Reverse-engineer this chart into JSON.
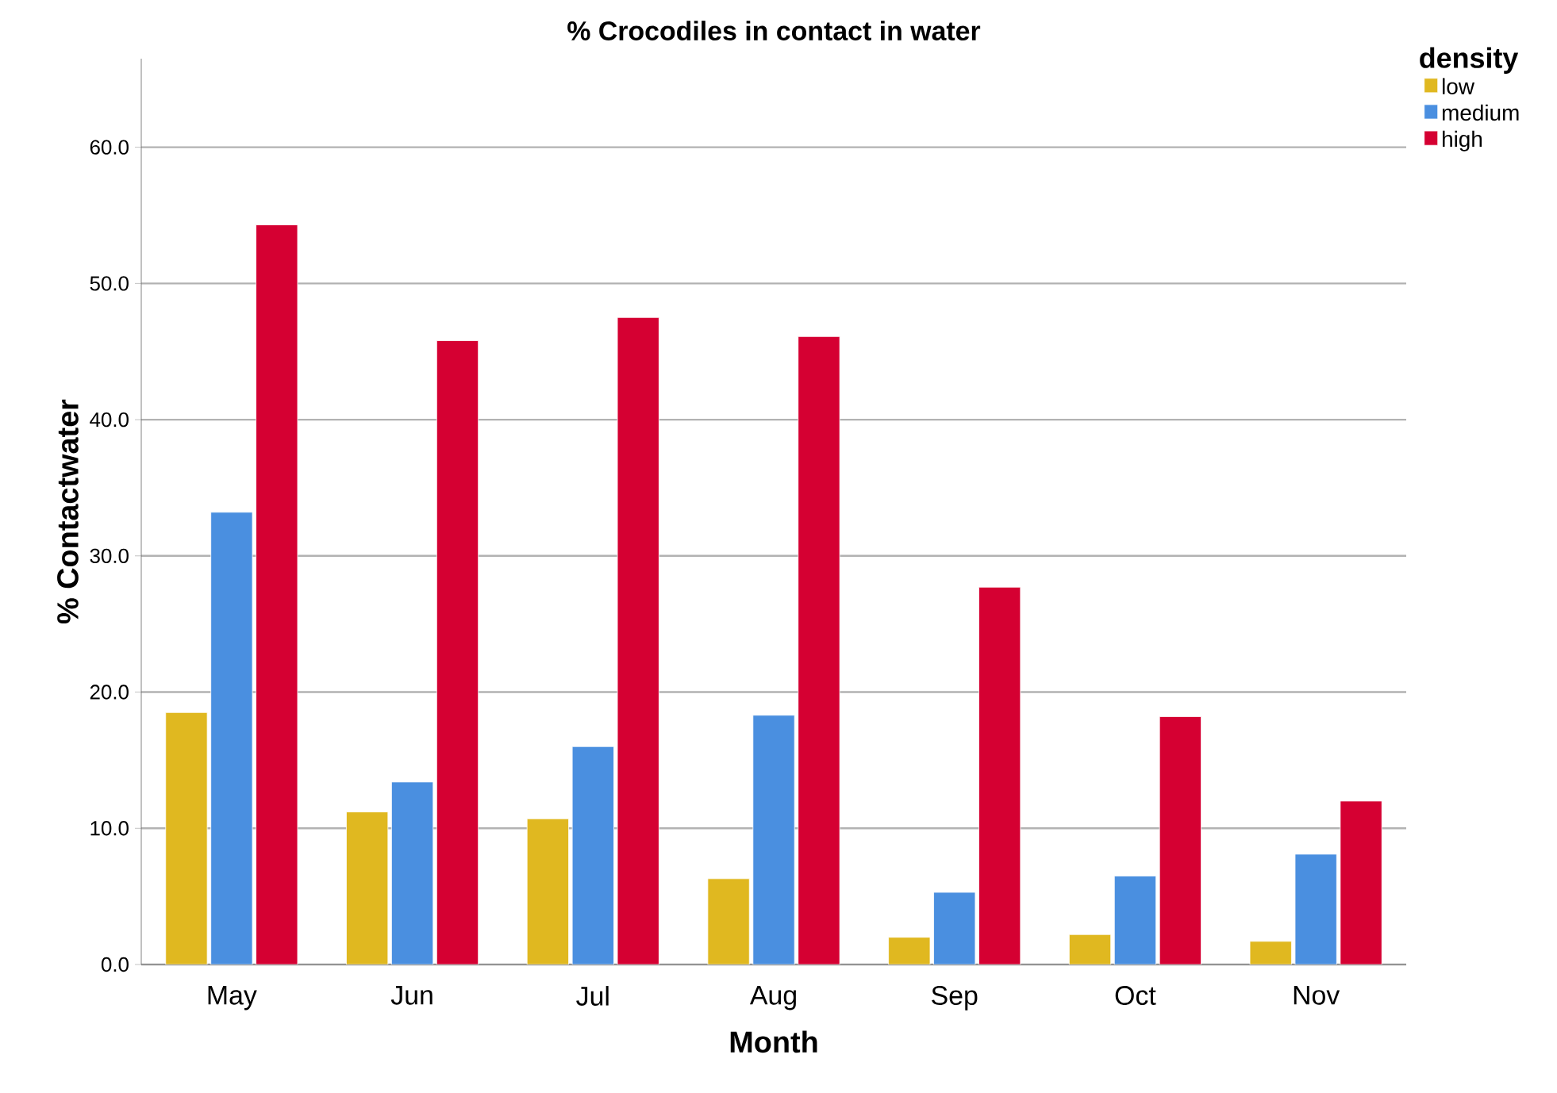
{
  "chart_data": {
    "type": "bar",
    "title": "% Crocodiles in contact in water",
    "xlabel": "Month",
    "ylabel": "% Contactwater",
    "legend_title": "density",
    "categories": [
      "May",
      "Jun",
      "Jul",
      "Aug",
      "Sep",
      "Oct",
      "Nov"
    ],
    "series": [
      {
        "name": "low",
        "color": "#e0b820",
        "values": [
          18.5,
          11.2,
          10.7,
          6.3,
          2.0,
          2.2,
          1.7
        ]
      },
      {
        "name": "medium",
        "color": "#4a8fe0",
        "values": [
          33.2,
          13.4,
          16.0,
          18.3,
          5.3,
          6.5,
          8.1
        ]
      },
      {
        "name": "high",
        "color": "#d50032",
        "values": [
          54.3,
          45.8,
          47.5,
          46.1,
          27.7,
          18.2,
          12.0
        ]
      }
    ],
    "ylim": [
      0,
      66.5
    ],
    "yticks": [
      {
        "value": 0,
        "label": "0.0"
      },
      {
        "value": 10,
        "label": "10.0"
      },
      {
        "value": 20,
        "label": "20.0"
      },
      {
        "value": 30,
        "label": "30.0"
      },
      {
        "value": 40,
        "label": "40.0"
      },
      {
        "value": 50,
        "label": "50.0"
      },
      {
        "value": 60,
        "label": "60.0"
      }
    ],
    "grid": "y",
    "legend": "top right"
  }
}
